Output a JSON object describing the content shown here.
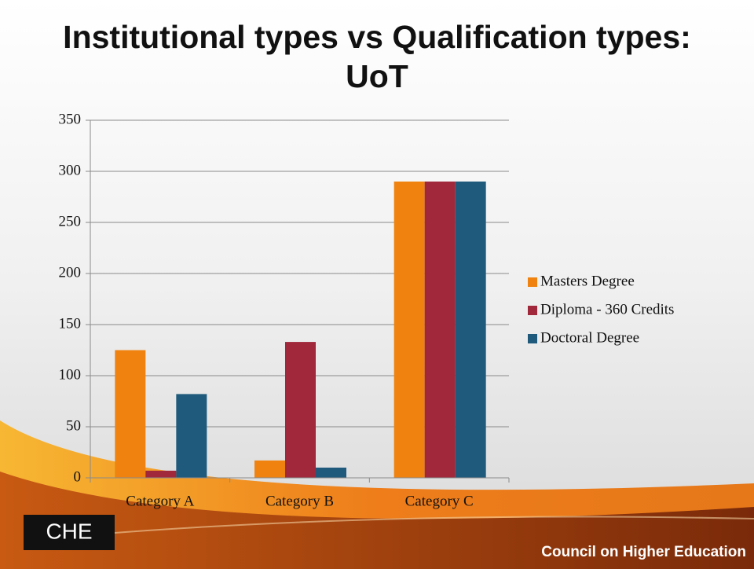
{
  "chart_data": {
    "type": "bar",
    "title": "Institutional types vs Qualification types: UoT",
    "categories": [
      "Category A",
      "Category B",
      "Category C"
    ],
    "series": [
      {
        "name": "Masters Degree",
        "color": "#f0820f",
        "values": [
          125,
          17,
          290
        ]
      },
      {
        "name": "Diploma - 360 Credits",
        "color": "#a0283a",
        "values": [
          7,
          133,
          290
        ]
      },
      {
        "name": "Doctoral Degree",
        "color": "#1f5a7d",
        "values": [
          82,
          10,
          290
        ]
      }
    ],
    "ylim": [
      0,
      350
    ],
    "yticks": [
      0,
      50,
      100,
      150,
      200,
      250,
      300,
      350
    ],
    "grid": true,
    "legend": "right"
  },
  "footer": {
    "logo": "CHE",
    "organization": "Council on Higher Education"
  }
}
